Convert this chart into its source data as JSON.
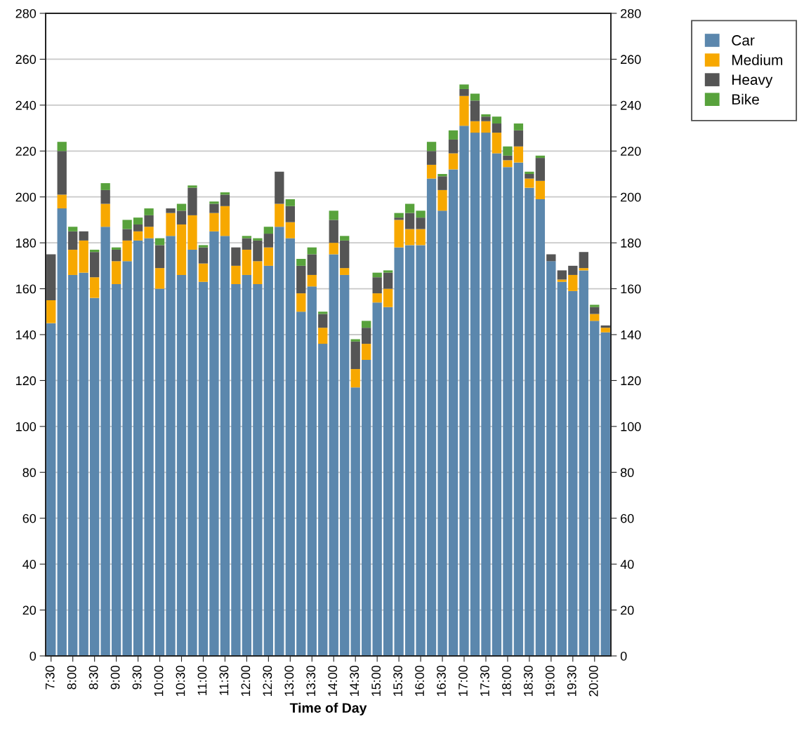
{
  "chart_data": {
    "type": "bar",
    "stacked": true,
    "xlabel": "Time of Day",
    "categories": [
      "7:30",
      null,
      "8:00",
      null,
      "8:30",
      null,
      "9:00",
      null,
      "9:30",
      null,
      "10:00",
      null,
      "10:30",
      null,
      "11:00",
      null,
      "11:30",
      null,
      "12:00",
      null,
      "12:30",
      null,
      "13:00",
      null,
      "13:30",
      null,
      "14:00",
      null,
      "14:30",
      null,
      "15:00",
      null,
      "15:30",
      null,
      "16:00",
      null,
      "16:30",
      null,
      "17:00",
      null,
      "17:30",
      null,
      "18:00",
      null,
      "18:30",
      null,
      "19:00",
      null,
      "19:30",
      null,
      "20:00",
      null
    ],
    "series": [
      {
        "name": "Car",
        "color": "#5b87ad",
        "values": [
          145,
          195,
          166,
          167,
          156,
          187,
          162,
          172,
          181,
          182,
          160,
          183,
          166,
          177,
          163,
          185,
          183,
          162,
          166,
          162,
          170,
          187,
          182,
          150,
          161,
          136,
          175,
          166,
          117,
          129,
          154,
          152,
          178,
          179,
          179,
          208,
          194,
          212,
          231,
          228,
          228,
          219,
          213,
          215,
          204,
          199,
          172,
          163,
          159,
          168,
          146,
          141
        ]
      },
      {
        "name": "Medium",
        "color": "#f7a800",
        "values": [
          10,
          6,
          11,
          14,
          9,
          10,
          10,
          9,
          4,
          5,
          9,
          10,
          22,
          15,
          8,
          8,
          13,
          8,
          11,
          10,
          8,
          10,
          7,
          8,
          5,
          7,
          5,
          3,
          8,
          7,
          4,
          8,
          12,
          7,
          7,
          6,
          9,
          7,
          13,
          5,
          5,
          9,
          3,
          7,
          4,
          8,
          0,
          1,
          7,
          1,
          3,
          2
        ]
      },
      {
        "name": "Heavy",
        "color": "#555555",
        "values": [
          20,
          19,
          8,
          4,
          11,
          6,
          5,
          5,
          3,
          5,
          10,
          2,
          6,
          12,
          7,
          4,
          5,
          8,
          5,
          9,
          6,
          14,
          7,
          12,
          9,
          6,
          10,
          12,
          12,
          7,
          7,
          7,
          1,
          7,
          5,
          6,
          6,
          6,
          3,
          9,
          2,
          4,
          2,
          7,
          2,
          10,
          3,
          4,
          4,
          7,
          3,
          1
        ]
      },
      {
        "name": "Bike",
        "color": "#58a23c",
        "values": [
          0,
          4,
          2,
          0,
          1,
          3,
          1,
          4,
          3,
          3,
          3,
          0,
          3,
          1,
          1,
          1,
          1,
          0,
          1,
          1,
          3,
          0,
          3,
          3,
          3,
          1,
          4,
          2,
          1,
          3,
          2,
          1,
          2,
          4,
          3,
          4,
          1,
          4,
          2,
          3,
          1,
          3,
          4,
          3,
          1,
          1,
          0,
          0,
          0,
          0,
          1,
          0
        ]
      }
    ],
    "ylim": [
      0,
      280
    ],
    "yticks": [
      0,
      20,
      40,
      60,
      80,
      100,
      120,
      140,
      160,
      180,
      200,
      220,
      240,
      260,
      280
    ],
    "y2lim": [
      0,
      280
    ],
    "y2ticks": [
      0,
      20,
      40,
      60,
      80,
      100,
      120,
      140,
      160,
      180,
      200,
      220,
      240,
      260,
      280
    ],
    "grid": "y",
    "legend": "top right"
  }
}
